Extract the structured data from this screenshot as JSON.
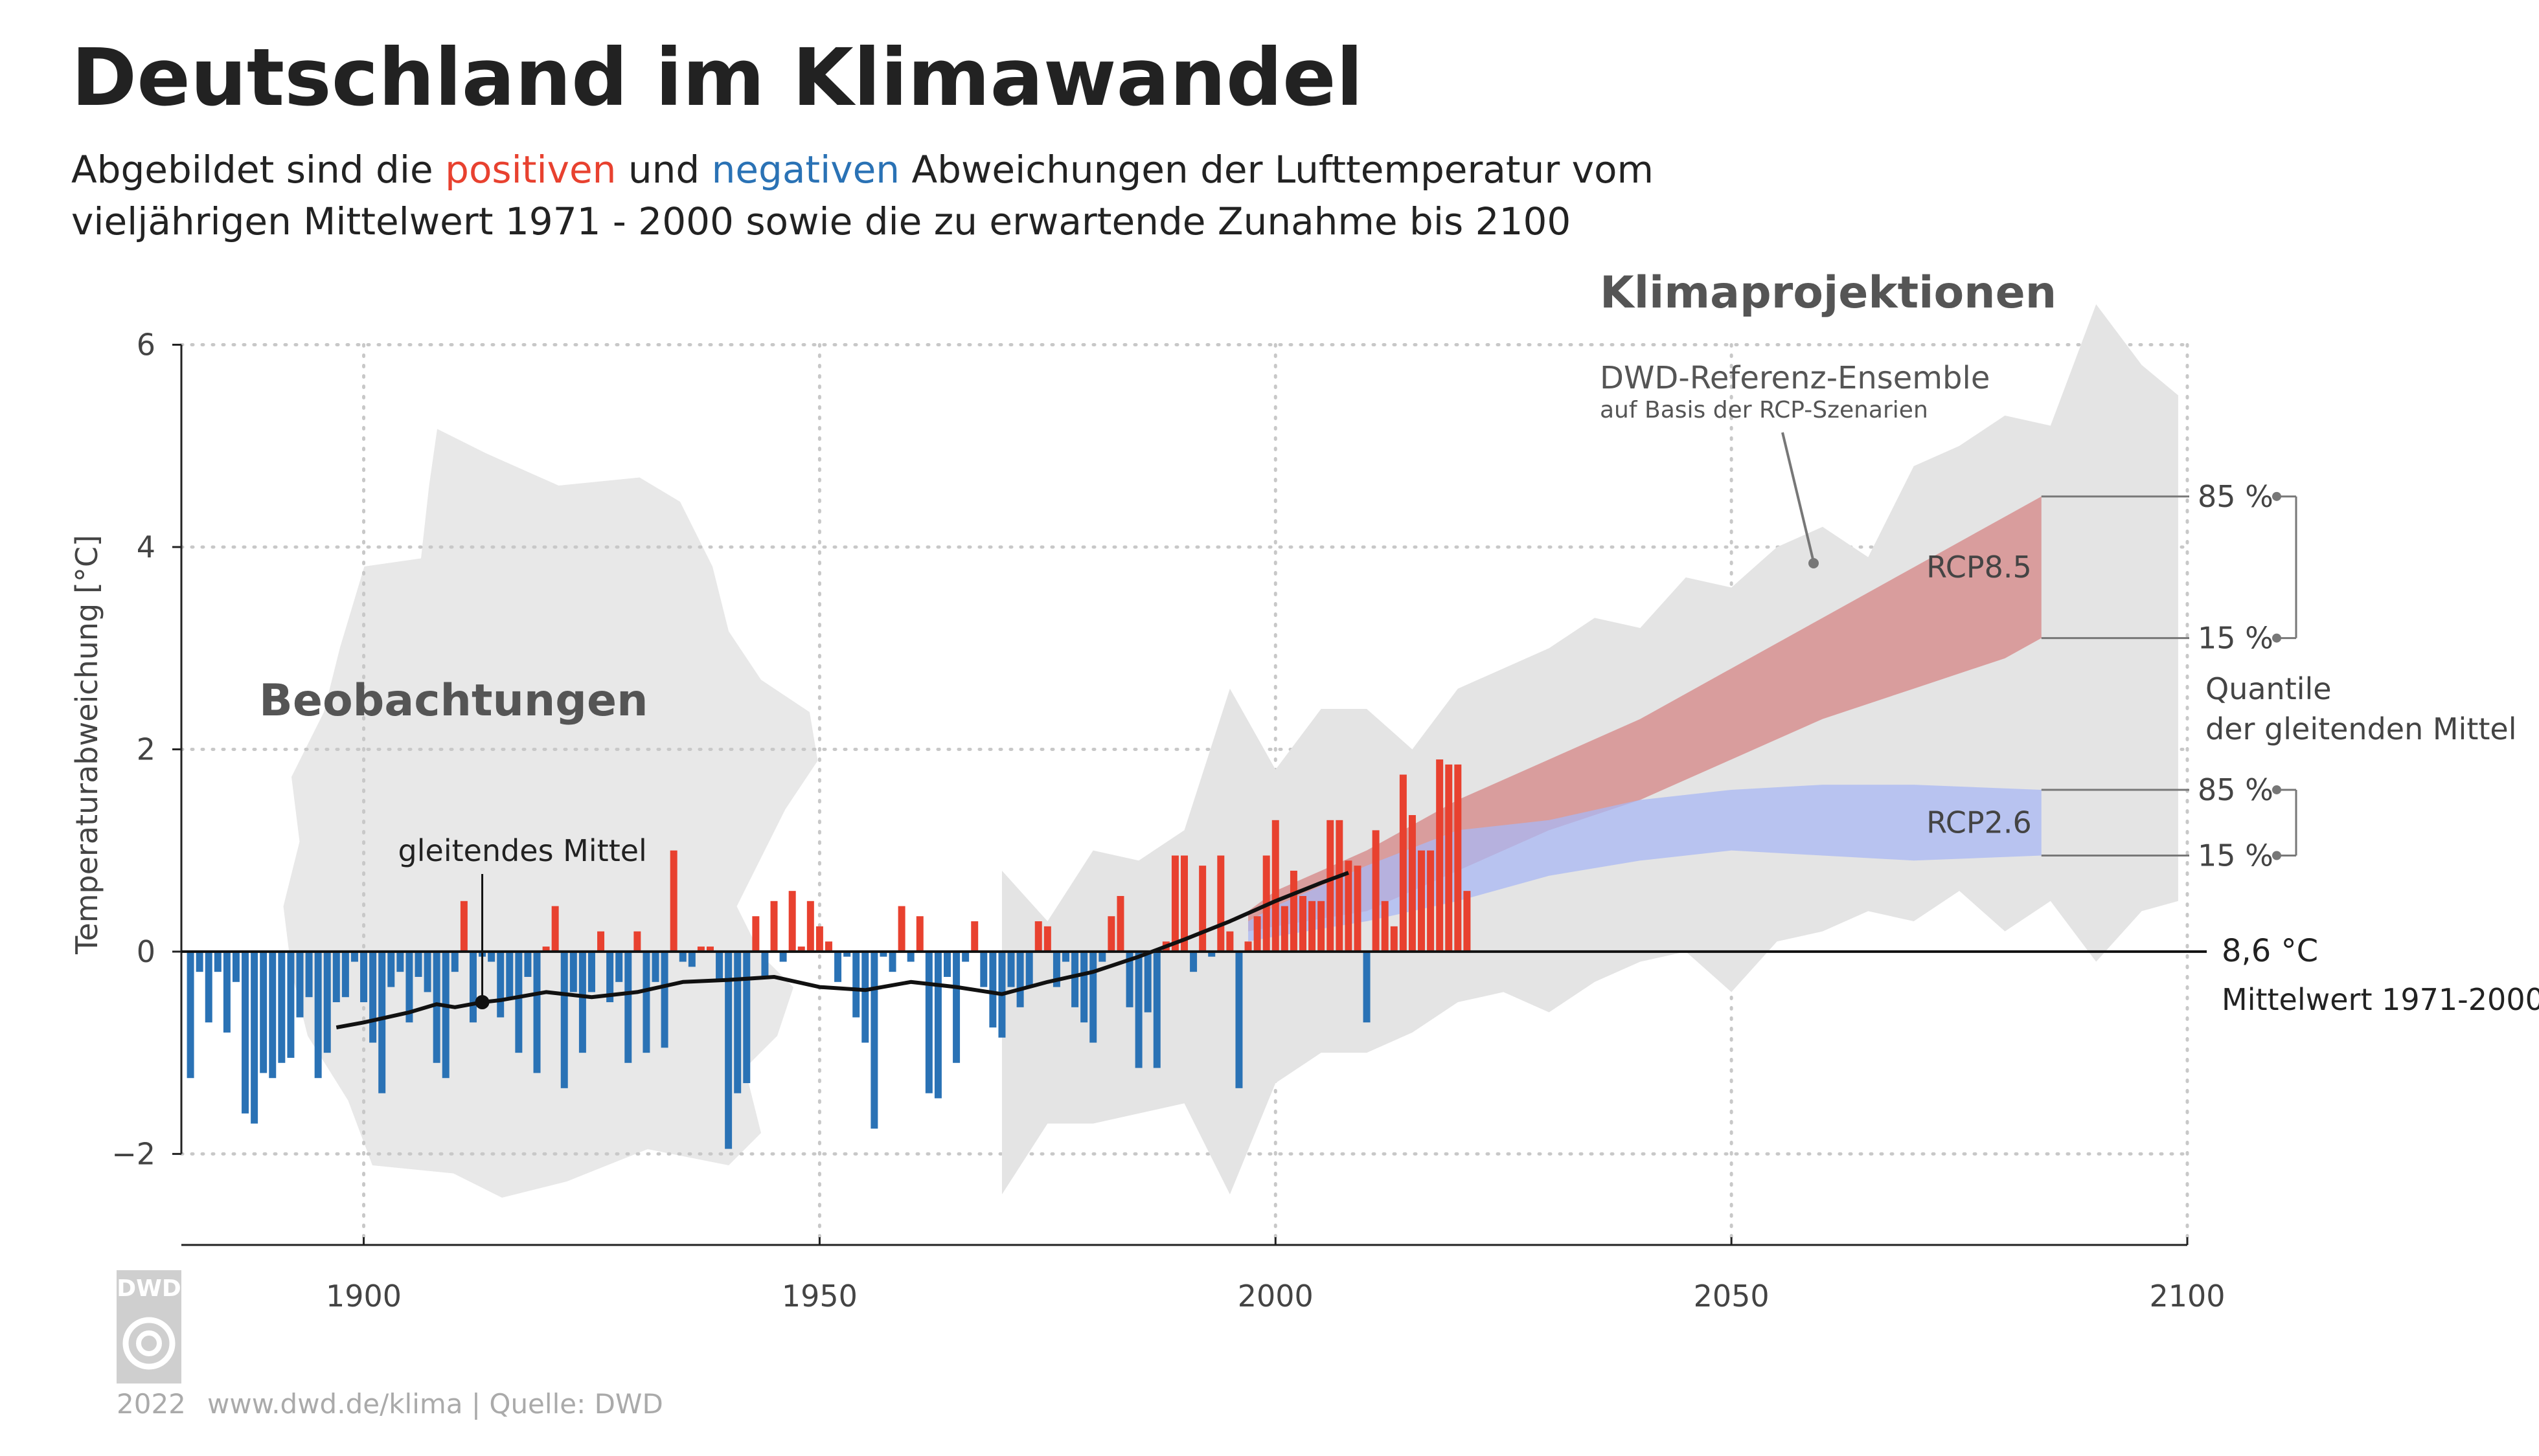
{
  "chart_data": {
    "type": "bar",
    "title": "Deutschland im Klimawandel",
    "subtitle": {
      "line1": [
        "Abgebildet sind die ",
        "positiven",
        " und ",
        "negativen",
        " Abweichungen der Lufttemperatur vom"
      ],
      "line2": "vieljährigen Mittelwert 1971 - 2000 sowie die zu erwartende Zunahme bis 2100"
    },
    "ylabel": "Temperaturabweichung [°C]",
    "xlim": [
      1880,
      2100
    ],
    "ylim": [
      -2.9,
      6
    ],
    "xticks": [
      1900,
      1950,
      2000,
      2050,
      2100
    ],
    "yticks": [
      {
        "value": -2,
        "label": "−2"
      },
      0,
      2,
      4,
      6
    ],
    "grid": true,
    "observations_label": "Beobachtungen",
    "projections_label": "Klimaprojektionen",
    "bars": {
      "positive_color": "#e8412f",
      "negative_color": "#2a72b5",
      "years": [
        1881,
        1882,
        1883,
        1884,
        1885,
        1886,
        1887,
        1888,
        1889,
        1890,
        1891,
        1892,
        1893,
        1894,
        1895,
        1896,
        1897,
        1898,
        1899,
        1900,
        1901,
        1902,
        1903,
        1904,
        1905,
        1906,
        1907,
        1908,
        1909,
        1910,
        1911,
        1912,
        1913,
        1914,
        1915,
        1916,
        1917,
        1918,
        1919,
        1920,
        1921,
        1922,
        1923,
        1924,
        1925,
        1926,
        1927,
        1928,
        1929,
        1930,
        1931,
        1932,
        1933,
        1934,
        1935,
        1936,
        1937,
        1938,
        1939,
        1940,
        1941,
        1942,
        1943,
        1944,
        1945,
        1946,
        1947,
        1948,
        1949,
        1950,
        1951,
        1952,
        1953,
        1954,
        1955,
        1956,
        1957,
        1958,
        1959,
        1960,
        1961,
        1962,
        1963,
        1964,
        1965,
        1966,
        1967,
        1968,
        1969,
        1970,
        1971,
        1972,
        1973,
        1974,
        1975,
        1976,
        1977,
        1978,
        1979,
        1980,
        1981,
        1982,
        1983,
        1984,
        1985,
        1986,
        1987,
        1988,
        1989,
        1990,
        1991,
        1992,
        1993,
        1994,
        1995,
        1996,
        1997,
        1998,
        1999,
        2000,
        2001,
        2002,
        2003,
        2004,
        2005,
        2006,
        2007,
        2008,
        2009,
        2010,
        2011,
        2012,
        2013,
        2014,
        2015,
        2016,
        2017,
        2018,
        2019,
        2020,
        2021
      ],
      "values": [
        -1.25,
        -0.2,
        -0.7,
        -0.2,
        -0.8,
        -0.3,
        -1.6,
        -1.7,
        -1.2,
        -1.25,
        -1.1,
        -1.05,
        -0.65,
        -0.45,
        -1.25,
        -1.0,
        -0.5,
        -0.45,
        -0.1,
        -0.5,
        -0.9,
        -1.4,
        -0.35,
        -0.2,
        -0.7,
        -0.25,
        -0.4,
        -1.1,
        -1.25,
        -0.2,
        0.5,
        -0.7,
        -0.05,
        -0.1,
        -0.65,
        -0.45,
        -1.0,
        -0.25,
        -1.2,
        0.05,
        0.45,
        -1.35,
        -0.4,
        -1.0,
        -0.4,
        0.2,
        -0.5,
        -0.3,
        -1.1,
        0.2,
        -1.0,
        -0.3,
        -0.95,
        1.0,
        -0.1,
        -0.15,
        0.05,
        0.05,
        -0.3,
        -1.95,
        -1.4,
        -1.3,
        0.35,
        -0.25,
        0.5,
        -0.1,
        0.6,
        0.05,
        0.5,
        0.25,
        0.1,
        -0.3,
        -0.05,
        -0.65,
        -0.9,
        -1.75,
        -0.05,
        -0.2,
        0.45,
        -0.1,
        0.35,
        -1.4,
        -1.45,
        -0.25,
        -1.1,
        -0.1,
        0.3,
        -0.35,
        -0.75,
        -0.85,
        -0.35,
        -0.55,
        -0.35,
        0.3,
        0.25,
        -0.35,
        -0.1,
        -0.55,
        -0.7,
        -0.9,
        -0.1,
        0.35,
        0.55,
        -0.55,
        -1.15,
        -0.6,
        -1.15,
        0.1,
        0.95,
        0.95,
        -0.2,
        0.85,
        -0.05,
        0.95,
        0.2,
        -1.35,
        0.1,
        0.35,
        0.95,
        1.3,
        0.45,
        0.8,
        0.55,
        0.5,
        0.5,
        1.3,
        1.3,
        0.9,
        0.85,
        -0.7,
        1.2,
        0.5,
        0.25,
        1.75,
        1.35,
        1.0,
        1.0,
        1.9,
        1.85,
        1.85,
        0.6
      ]
    },
    "moving_average": {
      "name": "gleitendes Mittel",
      "color": "#111111",
      "x": [
        1897,
        1900,
        1905,
        1908,
        1910,
        1913,
        1915,
        1920,
        1925,
        1930,
        1935,
        1940,
        1945,
        1950,
        1955,
        1960,
        1965,
        1970,
        1975,
        1980,
        1985,
        1990,
        1995,
        2000,
        2005,
        2008
      ],
      "values": [
        -0.75,
        -0.7,
        -0.6,
        -0.52,
        -0.55,
        -0.5,
        -0.48,
        -0.4,
        -0.45,
        -0.4,
        -0.3,
        -0.28,
        -0.25,
        -0.35,
        -0.38,
        -0.3,
        -0.35,
        -0.42,
        -0.3,
        -0.2,
        -0.05,
        0.12,
        0.3,
        0.5,
        0.68,
        0.78
      ]
    },
    "ensemble": {
      "name": "DWD-Referenz-Ensemble",
      "note": "auf Basis der RCP-Szenarien",
      "color": "#e4e4e4",
      "x": [
        1970,
        1975,
        1980,
        1985,
        1990,
        1995,
        2000,
        2005,
        2010,
        2015,
        2020,
        2025,
        2030,
        2035,
        2040,
        2045,
        2050,
        2055,
        2060,
        2065,
        2070,
        2075,
        2080,
        2085,
        2090,
        2095,
        2099
      ],
      "upper": [
        0.8,
        0.3,
        1.0,
        0.9,
        1.2,
        2.6,
        1.8,
        2.4,
        2.4,
        2.0,
        2.6,
        2.8,
        3.0,
        3.3,
        3.2,
        3.7,
        3.6,
        4.0,
        4.2,
        3.9,
        4.8,
        5.0,
        5.3,
        5.2,
        6.4,
        5.8,
        5.5
      ],
      "lower": [
        -2.4,
        -1.7,
        -1.7,
        -1.6,
        -1.5,
        -2.4,
        -1.3,
        -1.0,
        -1.0,
        -0.8,
        -0.5,
        -0.4,
        -0.6,
        -0.3,
        -0.1,
        0.0,
        -0.4,
        0.1,
        0.2,
        0.4,
        0.3,
        0.6,
        0.2,
        0.5,
        -0.1,
        0.4,
        0.5
      ]
    },
    "scenarios": [
      {
        "name": "RCP8.5",
        "color": "#d68585",
        "upper_label": "85 %",
        "lower_label": "15 %",
        "x": [
          1997,
          2000,
          2010,
          2020,
          2030,
          2040,
          2050,
          2060,
          2070,
          2080,
          2084
        ],
        "q15": [
          0.2,
          0.25,
          0.4,
          0.8,
          1.2,
          1.5,
          1.9,
          2.3,
          2.6,
          2.9,
          3.1
        ],
        "q85": [
          0.4,
          0.6,
          1.0,
          1.5,
          1.9,
          2.3,
          2.8,
          3.3,
          3.8,
          4.3,
          4.5
        ]
      },
      {
        "name": "RCP2.6",
        "color": "#a9b8f4",
        "upper_label": "85 %",
        "lower_label": "15 %",
        "x": [
          1997,
          2000,
          2010,
          2020,
          2030,
          2040,
          2050,
          2060,
          2070,
          2084
        ],
        "q15": [
          0.1,
          0.15,
          0.3,
          0.5,
          0.75,
          0.9,
          1.0,
          0.95,
          0.9,
          0.95
        ],
        "q85": [
          0.3,
          0.45,
          0.85,
          1.2,
          1.3,
          1.5,
          1.6,
          1.65,
          1.65,
          1.6
        ]
      }
    ],
    "quantile_note": [
      "Quantile",
      "der gleitenden Mittel"
    ],
    "baseline": {
      "label": "8,6 °C",
      "note": "Mittelwert 1971-2000"
    }
  },
  "footer": {
    "logo": "DWD",
    "year": "2022",
    "source": "www.dwd.de/klima | Quelle: DWD"
  }
}
